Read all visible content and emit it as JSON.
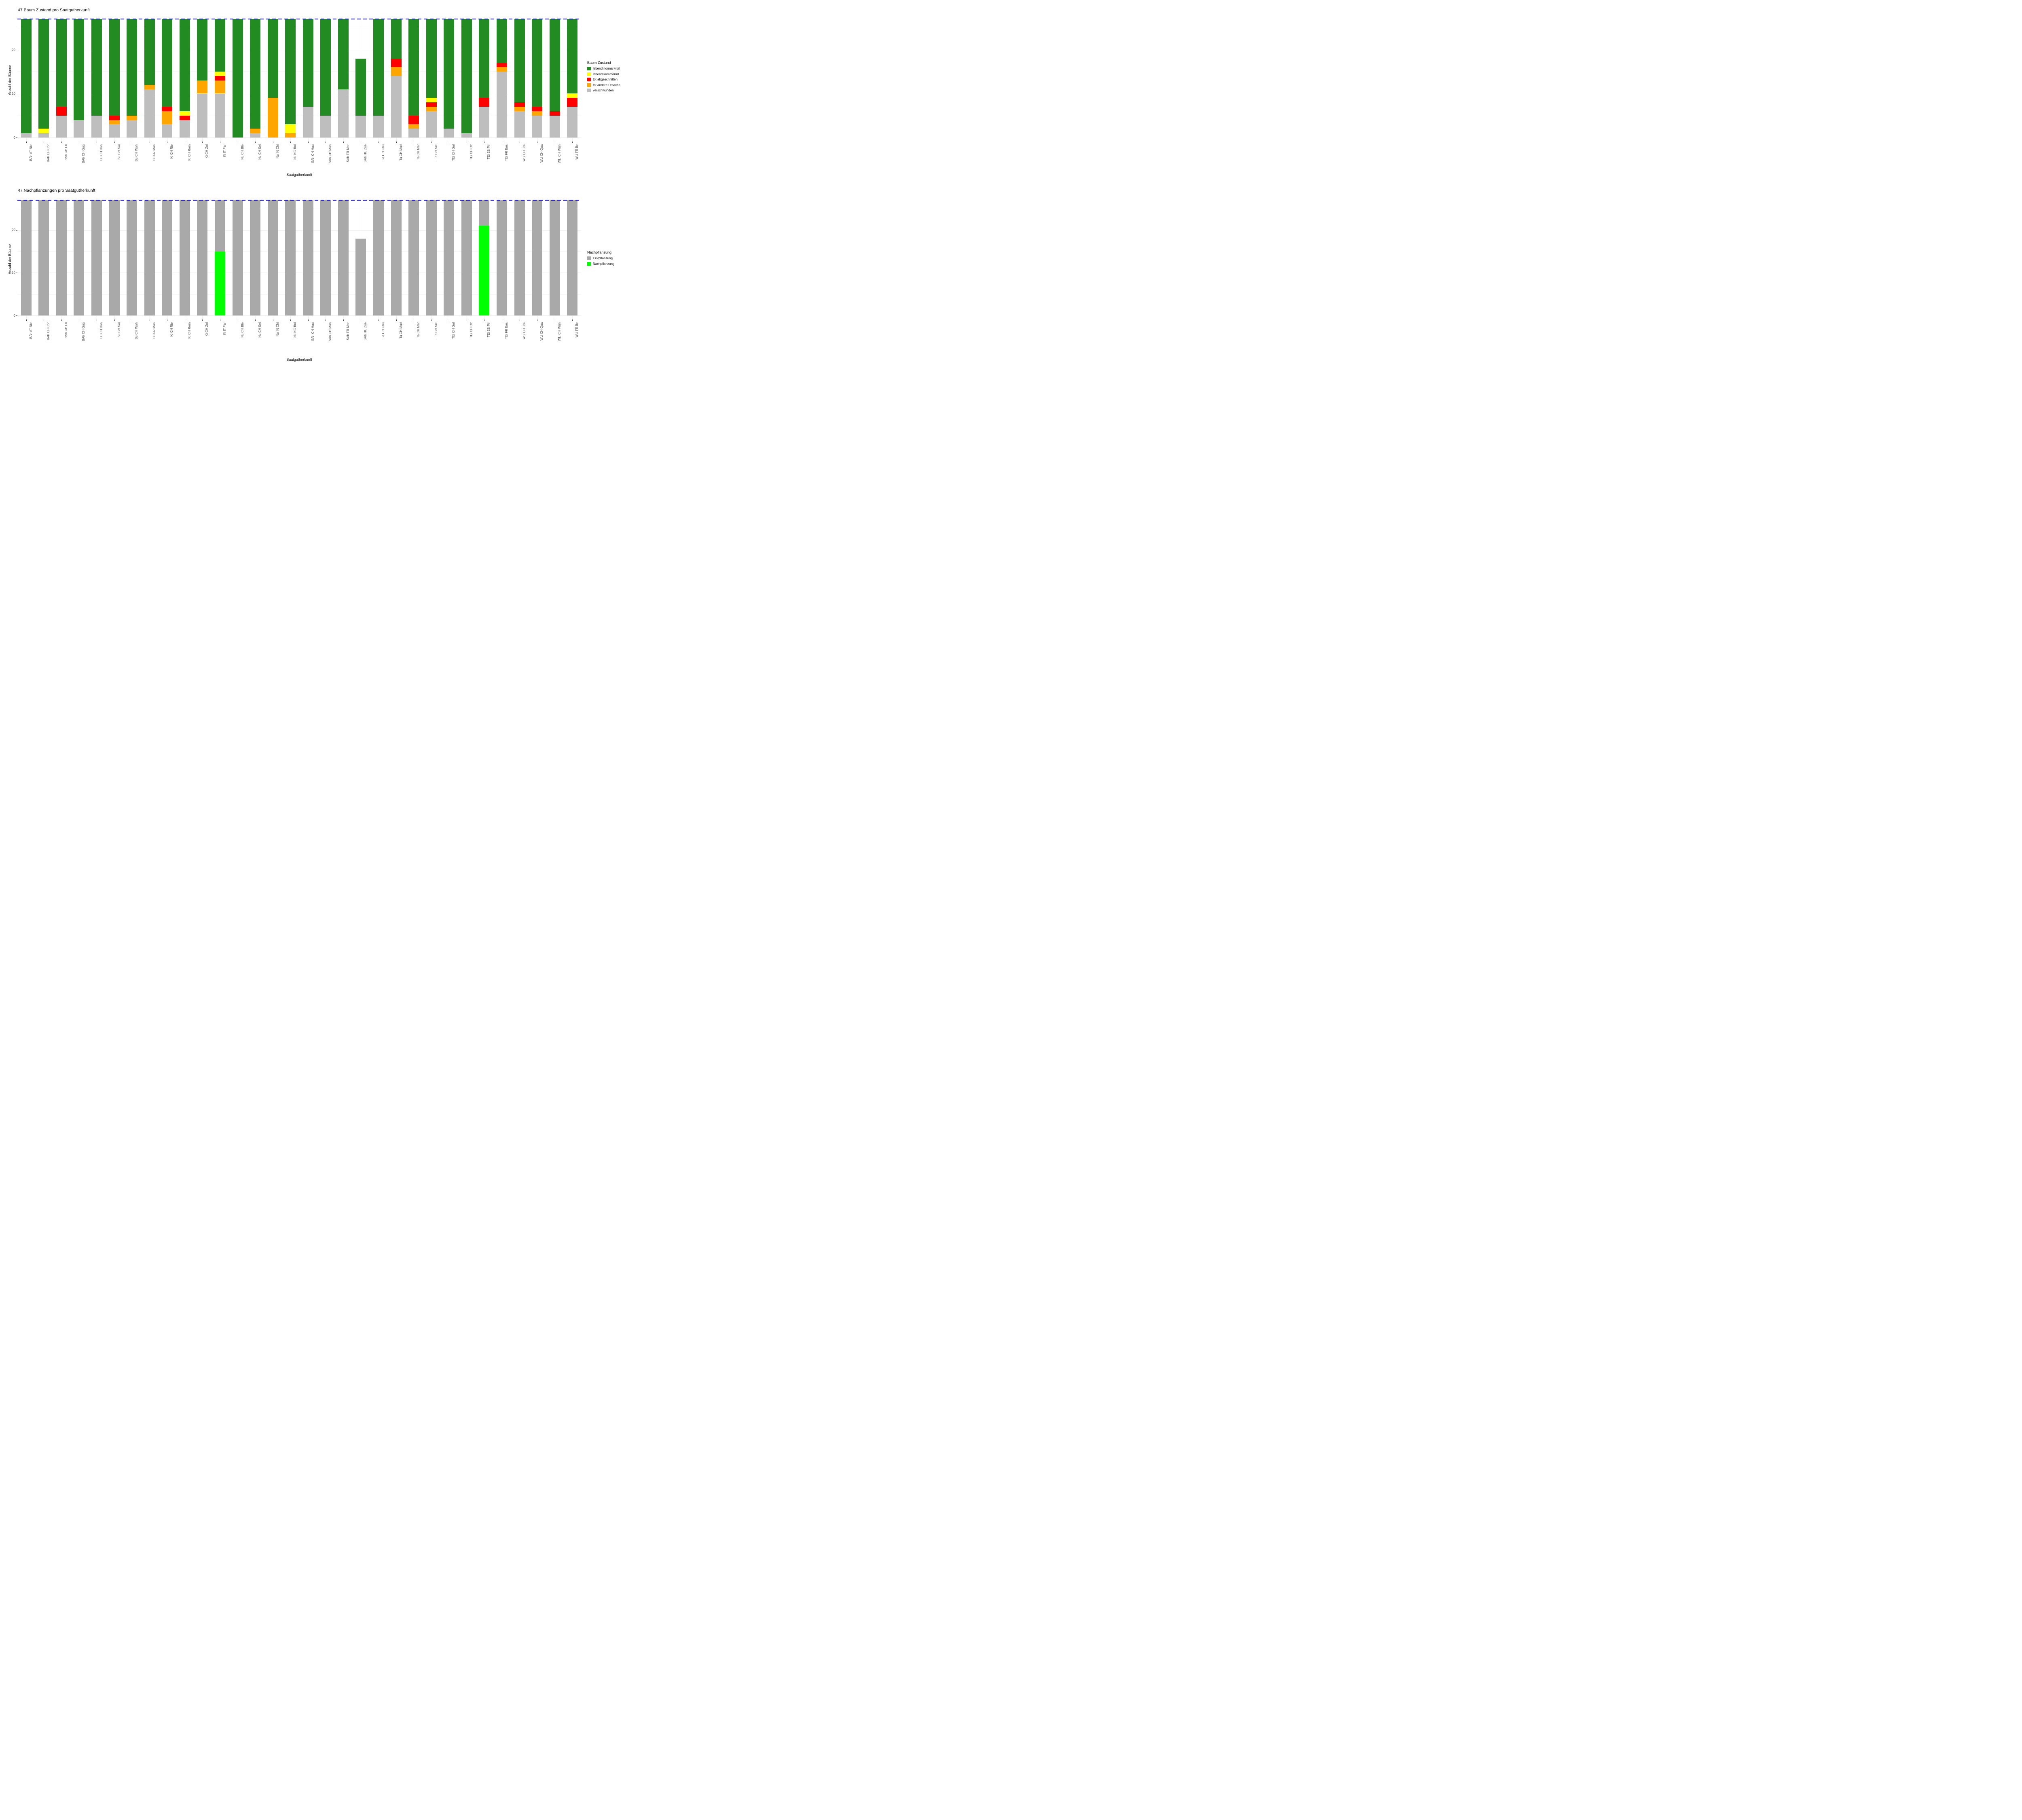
{
  "chart_data": [
    {
      "type": "bar",
      "stacked": true,
      "title": "47 Baum Zustand pro Saatgutherkunft",
      "xlabel": "Saatgutherkunft",
      "ylabel": "Anzahl der Bäume",
      "yticks": [
        0,
        10,
        20
      ],
      "ylim": [
        0,
        28
      ],
      "grid": true,
      "legend_position": "right",
      "reference_line": {
        "y": 27,
        "color": "#0000FF",
        "style": "dashed"
      },
      "legend_title": "Baum Zustand",
      "categories": [
        "BAh AT Nie",
        "BAh CH Cor",
        "BAh CH Fli",
        "BAh CH Gug",
        "Bu CH Bon",
        "Bu CH Sai",
        "Bu CH Woh",
        "Bu FR Mas",
        "Ki CH Rie",
        "Ki CH Rom",
        "Ki CH Zol",
        "Ki IT Par",
        "Nu CH Ble",
        "Nu CH Sel",
        "Nu IN Chi",
        "Nu KG Bul",
        "SAh CH Hau",
        "SAh CH Mün",
        "SAh FR Mor",
        "SAh HU Zsé",
        "Ta CH Chu",
        "Ta CH Mad",
        "Ta CH Mar",
        "Ta CH Sie",
        "TEi CH Gal",
        "TEi CH Olt",
        "TEi ES Pir",
        "TEi FR Bas",
        "WLi CH Bre",
        "WLi CH Qua",
        "WLi CH Wün",
        "WLi FR Île"
      ],
      "series": [
        {
          "name": "verschwunden",
          "color": "#BEBEBE",
          "values": [
            1,
            1,
            5,
            4,
            5,
            3,
            4,
            11,
            3,
            4,
            10,
            10,
            0,
            1,
            0,
            0,
            7,
            5,
            11,
            5,
            5,
            14,
            2,
            6,
            2,
            1,
            7,
            15,
            6,
            5,
            5,
            7
          ]
        },
        {
          "name": "tot andere Ursache",
          "color": "#FFA500",
          "values": [
            0,
            0,
            0,
            0,
            0,
            1,
            1,
            1,
            3,
            0,
            3,
            3,
            0,
            1,
            9,
            1,
            0,
            0,
            0,
            0,
            0,
            2,
            1,
            1,
            0,
            0,
            0,
            1,
            1,
            1,
            0,
            0
          ]
        },
        {
          "name": "tot abgeschnitten",
          "color": "#FF0000",
          "values": [
            0,
            0,
            2,
            0,
            0,
            1,
            0,
            0,
            1,
            1,
            0,
            1,
            0,
            0,
            0,
            0,
            0,
            0,
            0,
            0,
            0,
            2,
            2,
            1,
            0,
            0,
            2,
            1,
            1,
            1,
            1,
            2
          ]
        },
        {
          "name": "lebend kümmernd",
          "color": "#FFFF00",
          "values": [
            0,
            1,
            0,
            0,
            0,
            0,
            0,
            0,
            0,
            1,
            0,
            1,
            0,
            0,
            0,
            2,
            0,
            0,
            0,
            0,
            0,
            0,
            0,
            1,
            0,
            0,
            0,
            0,
            0,
            0,
            0,
            1
          ]
        },
        {
          "name": "lebend normal vital",
          "color": "#228B22",
          "values": [
            26,
            25,
            20,
            23,
            22,
            22,
            22,
            15,
            20,
            21,
            14,
            12,
            27,
            25,
            18,
            24,
            20,
            22,
            16,
            13,
            22,
            9,
            22,
            18,
            25,
            26,
            18,
            10,
            19,
            20,
            21,
            17
          ]
        }
      ]
    },
    {
      "type": "bar",
      "stacked": true,
      "title": "47 Nachpflanzungen pro Saatgutherkunft",
      "xlabel": "Saatgutherkunft",
      "ylabel": "Anzahl der Bäume",
      "yticks": [
        0,
        10,
        20
      ],
      "ylim": [
        0,
        28
      ],
      "grid": true,
      "legend_position": "right",
      "reference_line": {
        "y": 27,
        "color": "#0000FF",
        "style": "dashed"
      },
      "legend_title": "Nachpflanzung",
      "categories": [
        "BAh AT Nie",
        "BAh CH Cor",
        "BAh CH Fli",
        "BAh CH Gug",
        "Bu CH Bon",
        "Bu CH Sai",
        "Bu CH Woh",
        "Bu FR Mas",
        "Ki CH Rie",
        "Ki CH Rom",
        "Ki CH Zol",
        "Ki IT Par",
        "Nu CH Ble",
        "Nu CH Sel",
        "Nu IN Chi",
        "Nu KG Bul",
        "SAh CH Hau",
        "SAh CH Mün",
        "SAh FR Mor",
        "SAh HU Zsé",
        "Ta CH Chu",
        "Ta CH Mad",
        "Ta CH Mar",
        "Ta CH Sie",
        "TEi CH Gal",
        "TEi CH Olt",
        "TEi ES Pir",
        "TEi FR Bas",
        "WLi CH Bre",
        "WLi CH Qua",
        "WLi CH Wün",
        "WLi FR Île"
      ],
      "series": [
        {
          "name": "Nachpflanzung",
          "color": "#00FF00",
          "values": [
            0,
            0,
            0,
            0,
            0,
            0,
            0,
            0,
            0,
            0,
            0,
            15,
            0,
            0,
            0,
            0,
            0,
            0,
            0,
            0,
            0,
            0,
            0,
            0,
            0,
            0,
            21,
            0,
            0,
            0,
            0,
            0
          ]
        },
        {
          "name": "Erstpflanzung",
          "color": "#A9A9A9",
          "values": [
            27,
            27,
            27,
            27,
            27,
            27,
            27,
            27,
            27,
            27,
            27,
            12,
            27,
            27,
            27,
            27,
            27,
            27,
            27,
            18,
            27,
            27,
            27,
            27,
            27,
            27,
            6,
            27,
            27,
            27,
            27,
            27
          ]
        }
      ]
    }
  ]
}
